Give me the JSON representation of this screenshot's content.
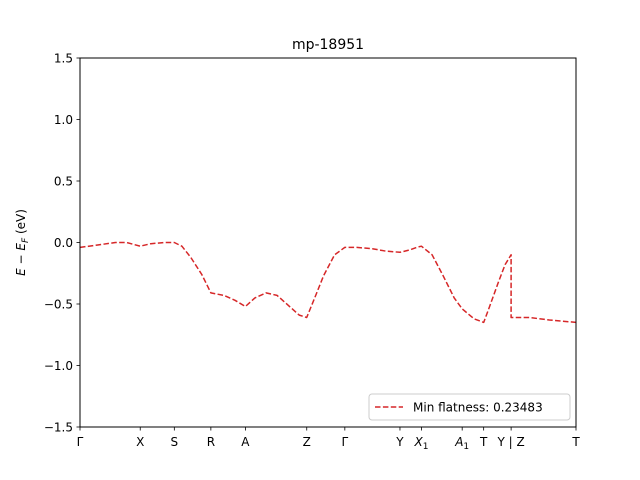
{
  "chart_data": {
    "type": "line",
    "title": "mp-18951",
    "ylabel": "E − E_F (eV)",
    "xlabel": "",
    "ylim": [
      -1.5,
      1.5
    ],
    "y_ticks": [
      1.5,
      1.0,
      0.5,
      0.0,
      -0.5,
      -1.0,
      -1.5
    ],
    "y_tick_labels": [
      "1.5",
      "1.0",
      "0.5",
      "0.0",
      "−0.5",
      "−1.0",
      "−1.5"
    ],
    "xlim": [
      0,
      22.4
    ],
    "x_ticks": [
      {
        "x": 0.0,
        "label": "Γ"
      },
      {
        "x": 2.72,
        "label": "X"
      },
      {
        "x": 4.26,
        "label": "S"
      },
      {
        "x": 5.91,
        "label": "R"
      },
      {
        "x": 7.47,
        "label": "A"
      },
      {
        "x": 10.24,
        "label": "Z"
      },
      {
        "x": 11.96,
        "label": "Γ"
      },
      {
        "x": 14.45,
        "label": "Y"
      },
      {
        "x": 15.42,
        "label": "X",
        "sub": "1"
      },
      {
        "x": 17.26,
        "label": "A",
        "sub": "1"
      },
      {
        "x": 18.23,
        "label": "T"
      },
      {
        "x": 19.47,
        "label": "Y | Z"
      },
      {
        "x": 22.4,
        "label": "T"
      }
    ],
    "grid": false,
    "legend_position": "lower right",
    "series": [
      {
        "name": "Min flatness: 0.23483",
        "color": "#d62728",
        "style": "dashed",
        "points": [
          [
            0,
            -0.04
          ],
          [
            0.8,
            -0.02
          ],
          [
            1.6,
            0.0
          ],
          [
            2.1,
            0.0
          ],
          [
            2.72,
            -0.03
          ],
          [
            3.2,
            -0.01
          ],
          [
            3.8,
            0.0
          ],
          [
            4.26,
            0.0
          ],
          [
            4.6,
            -0.03
          ],
          [
            5.0,
            -0.12
          ],
          [
            5.5,
            -0.26
          ],
          [
            5.91,
            -0.41
          ],
          [
            6.5,
            -0.43
          ],
          [
            7.0,
            -0.47
          ],
          [
            7.47,
            -0.52
          ],
          [
            7.9,
            -0.45
          ],
          [
            8.4,
            -0.41
          ],
          [
            8.9,
            -0.43
          ],
          [
            9.4,
            -0.51
          ],
          [
            9.9,
            -0.59
          ],
          [
            10.24,
            -0.61
          ],
          [
            10.6,
            -0.45
          ],
          [
            11.0,
            -0.27
          ],
          [
            11.5,
            -0.1
          ],
          [
            11.96,
            -0.04
          ],
          [
            12.5,
            -0.04
          ],
          [
            13.2,
            -0.05
          ],
          [
            13.8,
            -0.07
          ],
          [
            14.45,
            -0.08
          ],
          [
            14.9,
            -0.06
          ],
          [
            15.2,
            -0.04
          ],
          [
            15.42,
            -0.03
          ],
          [
            15.9,
            -0.1
          ],
          [
            16.4,
            -0.27
          ],
          [
            16.9,
            -0.45
          ],
          [
            17.26,
            -0.54
          ],
          [
            17.8,
            -0.62
          ],
          [
            18.23,
            -0.65
          ],
          [
            18.5,
            -0.52
          ],
          [
            18.9,
            -0.32
          ],
          [
            19.2,
            -0.18
          ],
          [
            19.47,
            -0.1
          ],
          [
            19.47,
            -0.61
          ],
          [
            20.3,
            -0.61
          ],
          [
            21.2,
            -0.63
          ],
          [
            22.4,
            -0.65
          ]
        ]
      }
    ]
  }
}
